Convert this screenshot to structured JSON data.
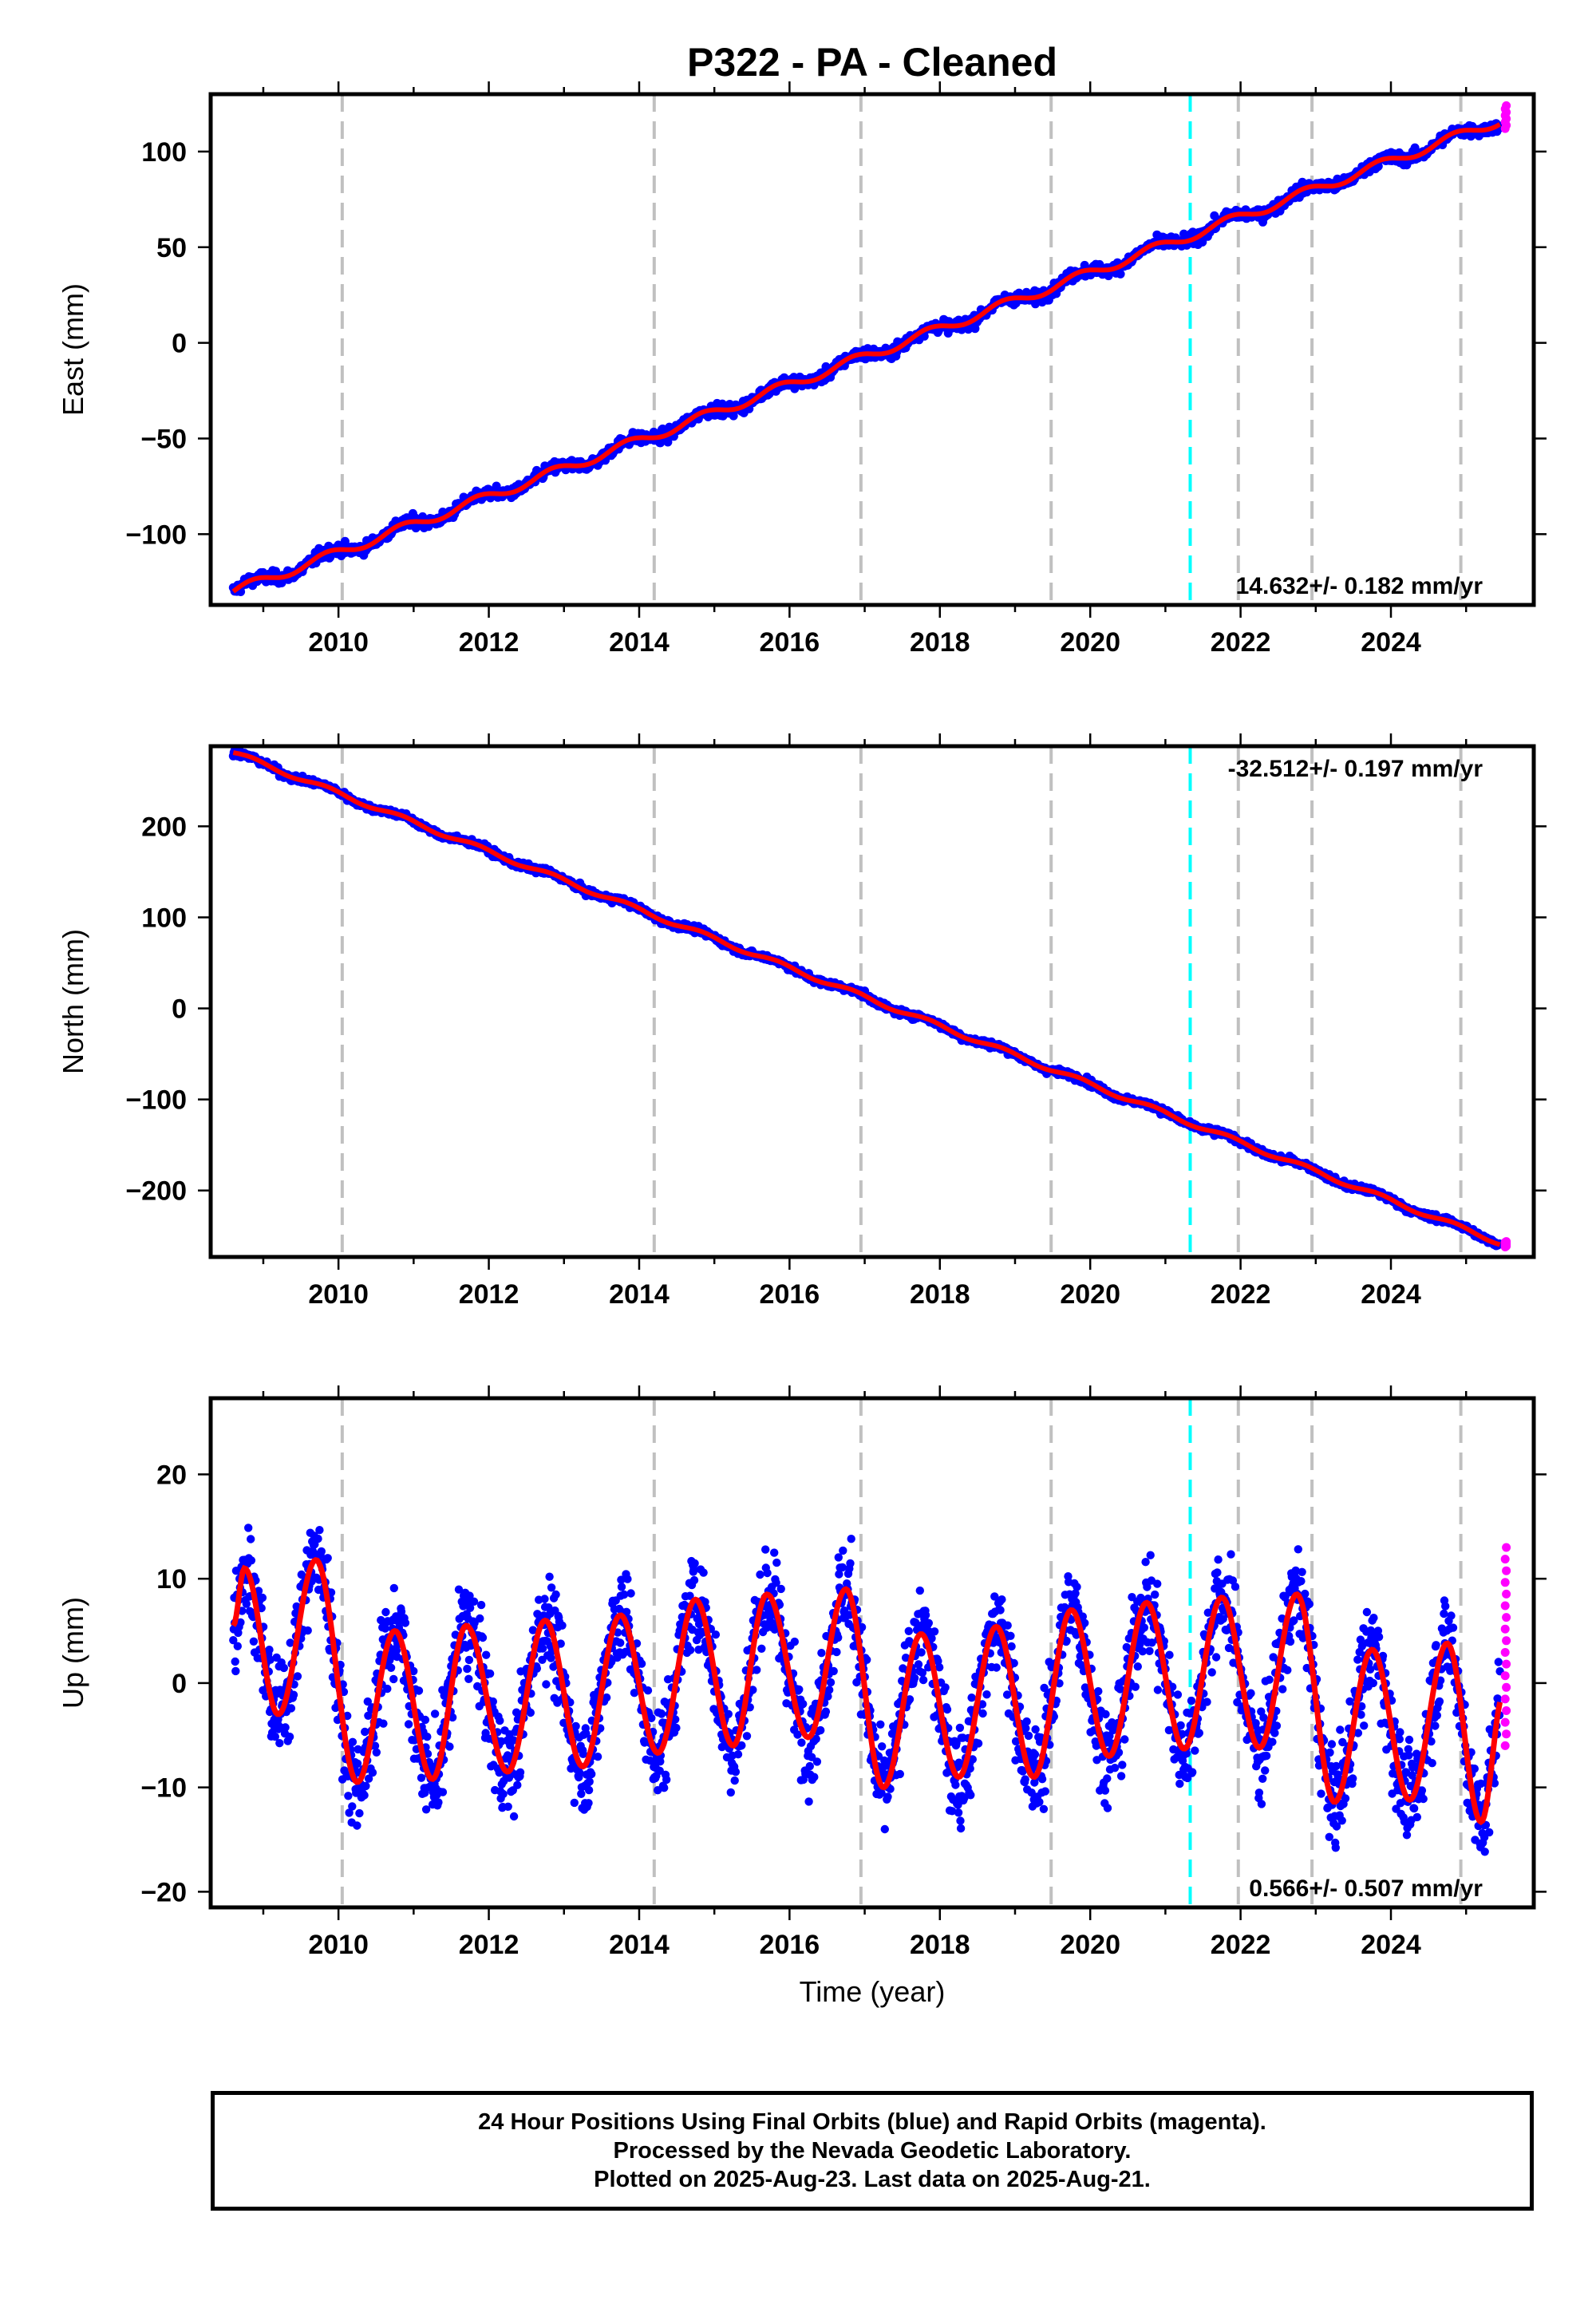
{
  "title": "P322  - PA - Cleaned",
  "x_axis_label": "Time (year)",
  "footer": {
    "line1": "24 Hour Positions Using Final Orbits (blue) and Rapid Orbits (magenta).",
    "line2": "Processed by the Nevada Geodetic Laboratory.",
    "line3": "Plotted on 2025-Aug-23. Last data on 2025-Aug-21."
  },
  "colors": {
    "final_orbits": "#0000ff",
    "rapid_orbits": "#ff00ff",
    "model_fit": "#ff0000",
    "equipment_change": "#00ffff",
    "antenna_change": "#c0c0c0"
  },
  "chart_data": [
    {
      "type": "scatter",
      "panel": "east",
      "ylabel": "East (mm)",
      "xlim": [
        2008.3,
        2025.9
      ],
      "ylim": [
        -137,
        130
      ],
      "xticks": [
        "2010",
        "2012",
        "2014",
        "2016",
        "2018",
        "2020",
        "2022",
        "2024"
      ],
      "yticks": [
        "100",
        "50",
        "0",
        "−50",
        "−100"
      ],
      "ytick_values": [
        100,
        50,
        0,
        -50,
        -100
      ],
      "grid": false,
      "rate_label": "14.632+/- 0.182 mm/yr",
      "rate_label_position": "bottom-right",
      "rate_mm_per_yr": 14.632,
      "rate_sigma": 0.182,
      "start": [
        2008.6,
        -130
      ],
      "end_final": [
        2025.5,
        117
      ],
      "rapid_range": [
        112,
        124
      ],
      "vertical_lines_gray": [
        2010.05,
        2014.2,
        2016.95,
        2019.48,
        2021.97,
        2022.95,
        2024.93
      ],
      "vertical_lines_cyan": [
        2021.33
      ]
    },
    {
      "type": "scatter",
      "panel": "north",
      "ylabel": "North (mm)",
      "xlim": [
        2008.3,
        2025.9
      ],
      "ylim": [
        -273,
        288
      ],
      "xticks": [
        "2010",
        "2012",
        "2014",
        "2016",
        "2018",
        "2020",
        "2022",
        "2024"
      ],
      "yticks": [
        "200",
        "100",
        "0",
        "−100",
        "−200"
      ],
      "ytick_values": [
        200,
        100,
        0,
        -100,
        -200
      ],
      "grid": false,
      "rate_label": "-32.512+/- 0.197 mm/yr",
      "rate_label_position": "top-right",
      "rate_mm_per_yr": -32.512,
      "rate_sigma": 0.197,
      "start": [
        2008.6,
        281
      ],
      "end_final": [
        2025.5,
        -259
      ],
      "rapid_range": [
        -262,
        -256
      ],
      "vertical_lines_gray": [
        2010.05,
        2014.2,
        2016.95,
        2019.48,
        2021.97,
        2022.95,
        2024.93
      ],
      "vertical_lines_cyan": [
        2021.33
      ]
    },
    {
      "type": "scatter",
      "panel": "up",
      "ylabel": "Up (mm)",
      "xlim": [
        2008.3,
        2025.9
      ],
      "ylim": [
        -21.5,
        27.3
      ],
      "xticks": [
        "2010",
        "2012",
        "2014",
        "2016",
        "2018",
        "2020",
        "2022",
        "2024"
      ],
      "yticks": [
        "20",
        "10",
        "0",
        "−10",
        "−20"
      ],
      "ytick_values": [
        20,
        10,
        0,
        -10,
        -20
      ],
      "grid": false,
      "rate_label": "0.566+/- 0.507 mm/yr",
      "rate_label_position": "bottom-right",
      "rate_mm_per_yr": 0.566,
      "rate_sigma": 0.507,
      "seasonal_peaks": [
        [
          2008.75,
          11
        ],
        [
          2009.7,
          11.8
        ],
        [
          2010.75,
          5
        ],
        [
          2011.7,
          5.5
        ],
        [
          2012.75,
          6
        ],
        [
          2013.75,
          6.5
        ],
        [
          2014.75,
          8
        ],
        [
          2015.7,
          8.5
        ],
        [
          2016.75,
          9
        ],
        [
          2017.75,
          4.7
        ],
        [
          2018.75,
          5.4
        ],
        [
          2019.75,
          7
        ],
        [
          2020.75,
          7.7
        ],
        [
          2021.75,
          8.2
        ],
        [
          2022.75,
          8.5
        ],
        [
          2023.75,
          3.2
        ],
        [
          2024.75,
          3.8
        ]
      ],
      "seasonal_troughs": [
        [
          2009.2,
          -3
        ],
        [
          2010.25,
          -9.5
        ],
        [
          2011.25,
          -9.2
        ],
        [
          2012.25,
          -8.5
        ],
        [
          2013.25,
          -8
        ],
        [
          2014.25,
          -6.7
        ],
        [
          2015.25,
          -6
        ],
        [
          2016.25,
          -5.2
        ],
        [
          2017.25,
          -10
        ],
        [
          2018.25,
          -9
        ],
        [
          2019.25,
          -9
        ],
        [
          2020.25,
          -7
        ],
        [
          2021.25,
          -6.3
        ],
        [
          2022.25,
          -6.2
        ],
        [
          2023.25,
          -11.4
        ],
        [
          2024.25,
          -11.2
        ],
        [
          2025.2,
          -13.3
        ]
      ],
      "rapid_range": [
        -6,
        13
      ],
      "vertical_lines_gray": [
        2010.05,
        2014.2,
        2016.95,
        2019.48,
        2021.97,
        2022.95,
        2024.93
      ],
      "vertical_lines_cyan": [
        2021.33
      ]
    }
  ]
}
